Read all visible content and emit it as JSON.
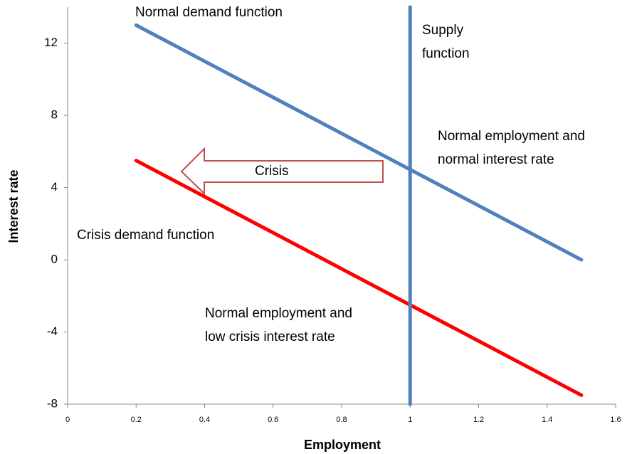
{
  "chart_data": {
    "type": "line",
    "x_label": "Employment",
    "y_label": "Interest rate",
    "xlim": [
      0,
      1.6
    ],
    "xticks": [
      0,
      0.2,
      0.4,
      0.6,
      0.8,
      1,
      1.2,
      1.4,
      1.6
    ],
    "ylim": [
      -8,
      14
    ],
    "yticks": [
      -8,
      -4,
      0,
      4,
      8,
      12
    ],
    "series": [
      {
        "name": "Normal demand function",
        "color": "#4f81bd",
        "x": [
          0.2,
          1.5
        ],
        "values": [
          13,
          0
        ]
      },
      {
        "name": "Crisis demand function",
        "color": "#ff0000",
        "x": [
          0.2,
          1.5
        ],
        "values": [
          5.5,
          -7.5
        ]
      },
      {
        "name": "Supply function",
        "color": "#4f81bd",
        "x": [
          1,
          1
        ],
        "values": [
          -8,
          14
        ]
      }
    ],
    "annotations": [
      [
        "Normal demand function"
      ],
      [
        "Supply",
        "function"
      ],
      [
        "Normal employment and",
        "normal interest rate"
      ],
      [
        "Crisis demand function"
      ],
      [
        "Normal employment and",
        "low crisis interest rate"
      ],
      [
        "Crisis"
      ]
    ]
  }
}
